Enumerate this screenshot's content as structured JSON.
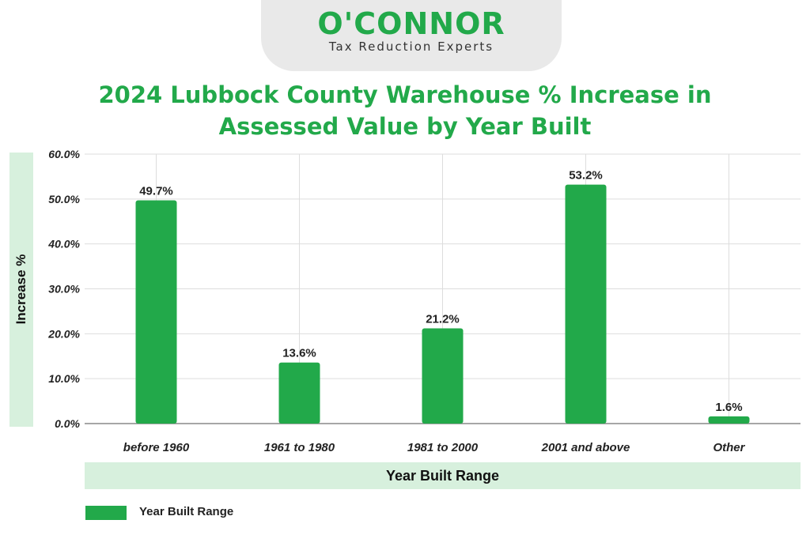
{
  "logo": {
    "wordmark": "O'CONNOR",
    "tagline": "Tax Reduction Experts"
  },
  "chart_data": {
    "type": "bar",
    "title": "2024 Lubbock County Warehouse % Increase in\nAssessed Value by Year Built",
    "xlabel": "Year Built Range",
    "ylabel": "Increase %",
    "categories": [
      "before 1960",
      "1961 to 1980",
      "1981 to 2000",
      "2001 and above",
      "Other"
    ],
    "series": [
      {
        "name": "Year Built Range",
        "values": [
          49.7,
          13.6,
          21.2,
          53.2,
          1.6
        ]
      }
    ],
    "data_labels": [
      "49.7%",
      "13.6%",
      "21.2%",
      "53.2%",
      "1.6%"
    ],
    "yticks": [
      "0.0%",
      "10.0%",
      "20.0%",
      "30.0%",
      "40.0%",
      "50.0%",
      "60.0%"
    ],
    "ylim": [
      0,
      60
    ],
    "grid": true,
    "legend_position": "bottom-left",
    "colors": {
      "bar": "#22a94a",
      "accent_band": "#d7f0dd",
      "title": "#22a94a"
    }
  }
}
